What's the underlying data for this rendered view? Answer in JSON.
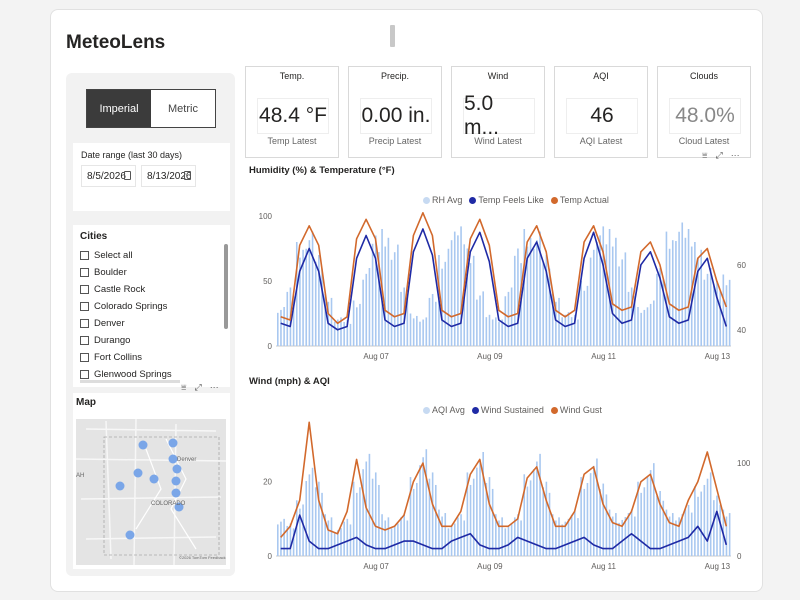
{
  "app": {
    "title": "MeteoLens"
  },
  "units_toggle": {
    "options": [
      "Imperial",
      "Metric"
    ],
    "selected": "Imperial"
  },
  "date_range": {
    "label": "Date range (last 30 days)",
    "start": "8/5/2026",
    "end": "8/13/2026"
  },
  "cities": {
    "header": "Cities",
    "items": [
      "Select all",
      "Boulder",
      "Castle Rock",
      "Colorado Springs",
      "Denver",
      "Durango",
      "Fort Collins",
      "Glenwood Springs"
    ]
  },
  "map": {
    "header": "Map",
    "labels": [
      "Denver",
      "COLORADO",
      "AH"
    ],
    "attribution": "©2026 TomTom Feedback"
  },
  "kpis": [
    {
      "title": "Temp.",
      "value": "48.4 °F",
      "sub": "Temp Latest"
    },
    {
      "title": "Precip.",
      "value": "0.00 in.",
      "sub": "Precip Latest"
    },
    {
      "title": "Wind",
      "value": "5.0 m...",
      "sub": "Wind Latest"
    },
    {
      "title": "AQI",
      "value": "46",
      "sub": "AQI Latest"
    },
    {
      "title": "Clouds",
      "value": "48.0%",
      "sub": "Cloud Latest"
    }
  ],
  "colors": {
    "rh": "#a9c8f0",
    "feels": "#1f2aa5",
    "actual": "#d2692c",
    "aqi": "#a9c8f0",
    "sustained": "#1f2aa5",
    "gust": "#d2692c"
  },
  "chart_data": [
    {
      "type": "line",
      "title": "Humidity (%) & Temperature (°F)",
      "x_ticks": [
        "Aug 07",
        "Aug 09",
        "Aug 11",
        "Aug 13"
      ],
      "y_left": {
        "ticks": [
          "100",
          "50",
          "0"
        ],
        "range": [
          0,
          100
        ]
      },
      "y_right": {
        "ticks": [
          "60",
          "40"
        ],
        "range": [
          35,
          75
        ]
      },
      "series": [
        {
          "name": "RH Avg",
          "style": "bar",
          "axis": "left",
          "values": [
            30,
            45,
            80,
            88,
            70,
            40,
            22,
            20,
            35,
            60,
            85,
            90,
            78,
            45,
            25,
            22,
            40,
            70,
            88,
            92,
            75,
            42,
            24,
            22,
            45,
            75,
            90,
            88,
            70,
            40,
            26,
            24,
            50,
            80,
            92,
            90,
            72,
            45,
            30,
            35,
            60,
            88,
            95,
            90,
            80,
            60,
            50,
            55
          ]
        },
        {
          "name": "Temp Feels Like",
          "style": "line",
          "axis": "right",
          "values": [
            42,
            41,
            58,
            65,
            58,
            42,
            40,
            41,
            62,
            69,
            62,
            43,
            41,
            42,
            64,
            71,
            63,
            43,
            41,
            42,
            64,
            70,
            61,
            43,
            41,
            42,
            62,
            67,
            58,
            43,
            41,
            42,
            62,
            70,
            60,
            45,
            42,
            43,
            60,
            64,
            56,
            44,
            42,
            43,
            58,
            62,
            50,
            41
          ]
        },
        {
          "name": "Temp Actual",
          "style": "line",
          "axis": "right",
          "values": [
            44,
            43,
            66,
            72,
            66,
            45,
            42,
            44,
            68,
            74,
            68,
            46,
            44,
            45,
            69,
            76,
            69,
            46,
            44,
            45,
            68,
            74,
            66,
            46,
            44,
            45,
            67,
            72,
            64,
            46,
            44,
            46,
            67,
            72,
            64,
            48,
            46,
            47,
            64,
            67,
            60,
            48,
            46,
            47,
            62,
            65,
            55,
            47
          ]
        }
      ]
    },
    {
      "type": "line",
      "title": "Wind (mph) & AQI",
      "x_ticks": [
        "Aug 07",
        "Aug 09",
        "Aug 11",
        "Aug 13"
      ],
      "y_left": {
        "ticks": [
          "20",
          "0"
        ],
        "range": [
          0,
          35
        ]
      },
      "y_right": {
        "ticks": [
          "100",
          "0"
        ],
        "range": [
          0,
          140
        ]
      },
      "series": [
        {
          "name": "AQI Avg",
          "style": "bar",
          "axis": "right",
          "values": [
            40,
            35,
            60,
            95,
            80,
            45,
            30,
            40,
            80,
            110,
            90,
            45,
            35,
            45,
            85,
            115,
            90,
            50,
            35,
            45,
            90,
            112,
            85,
            45,
            35,
            45,
            88,
            110,
            80,
            45,
            40,
            48,
            85,
            105,
            78,
            50,
            42,
            50,
            80,
            100,
            70,
            50,
            45,
            55,
            75,
            90,
            65,
            50
          ]
        },
        {
          "name": "Wind Sustained",
          "style": "line",
          "axis": "left",
          "values": [
            2,
            2,
            11,
            4,
            2,
            2,
            3,
            4,
            5,
            3,
            2,
            2,
            3,
            4,
            4,
            3,
            2,
            2,
            4,
            5,
            6,
            3,
            2,
            2,
            3,
            5,
            4,
            3,
            2,
            2,
            3,
            4,
            5,
            3,
            2,
            2,
            4,
            6,
            4,
            2,
            2,
            3,
            4,
            5,
            8,
            4,
            12,
            3
          ]
        },
        {
          "name": "Wind Gust",
          "style": "line",
          "axis": "left",
          "values": [
            5,
            8,
            15,
            36,
            15,
            7,
            6,
            12,
            26,
            13,
            8,
            7,
            8,
            11,
            20,
            25,
            14,
            8,
            8,
            12,
            22,
            26,
            14,
            8,
            8,
            10,
            21,
            24,
            15,
            8,
            8,
            12,
            22,
            24,
            14,
            9,
            8,
            12,
            20,
            22,
            14,
            9,
            8,
            15,
            20,
            28,
            18,
            8
          ]
        }
      ]
    }
  ]
}
